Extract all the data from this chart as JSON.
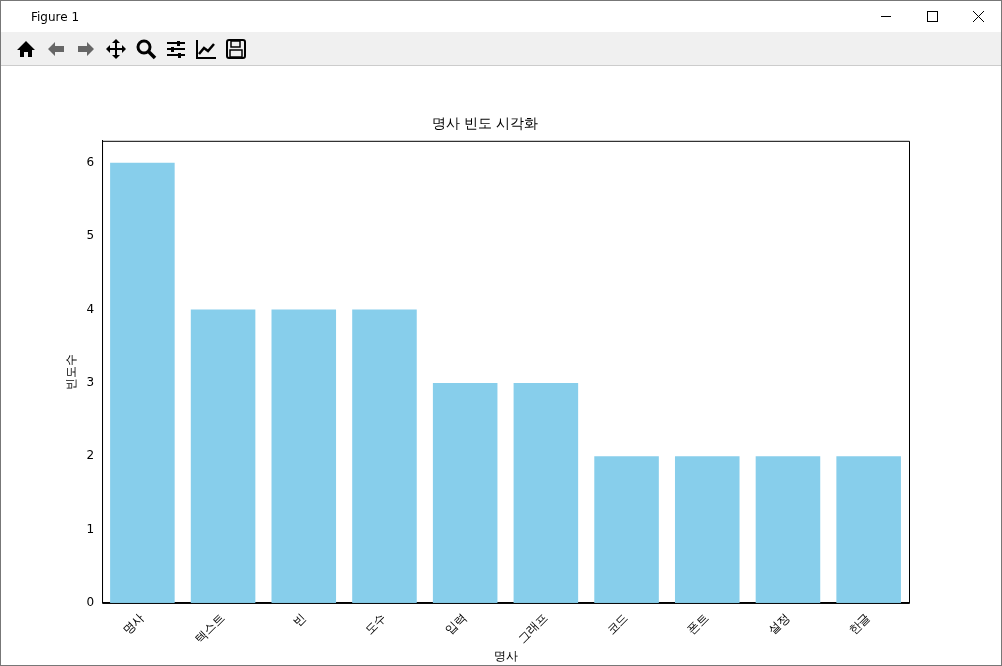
{
  "chart_data": {
    "type": "bar",
    "title": "명사 빈도 시각화",
    "xlabel": "명사",
    "ylabel": "빈도수",
    "categories": [
      "명사",
      "텍스트",
      "빈",
      "도수",
      "입력",
      "그래프",
      "코드",
      "폰트",
      "설정",
      "한글"
    ],
    "values": [
      6,
      4,
      4,
      4,
      3,
      3,
      2,
      2,
      2,
      2
    ],
    "color": "#87ceeb",
    "ylim": [
      0,
      6.3
    ],
    "yticks": [
      0,
      1,
      2,
      3,
      4,
      5,
      6
    ],
    "grid": false,
    "legend": false,
    "annotations": [
      "Figure 1"
    ]
  }
}
